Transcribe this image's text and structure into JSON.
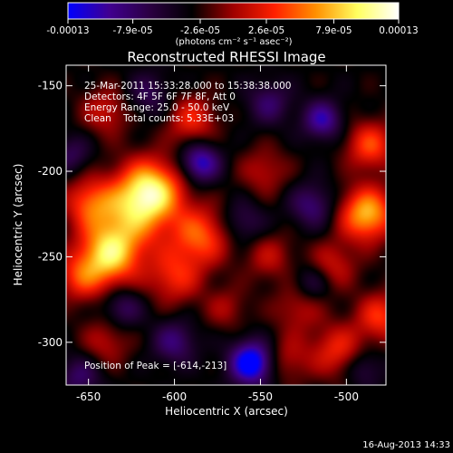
{
  "chart_data": {
    "type": "heatmap",
    "title": "Reconstructed RHESSI Image",
    "xlabel": "Heliocentric X (arcsec)",
    "ylabel": "Heliocentric Y (arcsec)",
    "xlim": [
      -663,
      -477
    ],
    "ylim": [
      -325,
      -138
    ],
    "x_ticks": [
      {
        "value": -650,
        "label": "-650"
      },
      {
        "value": -600,
        "label": "-600"
      },
      {
        "value": -550,
        "label": "-550"
      },
      {
        "value": -500,
        "label": "-500"
      }
    ],
    "y_ticks": [
      {
        "value": -150,
        "label": "-150"
      },
      {
        "value": -200,
        "label": "-200"
      },
      {
        "value": -250,
        "label": "-250"
      },
      {
        "value": -300,
        "label": "-300"
      }
    ],
    "colorbar": {
      "range": [
        -0.00013,
        0.00013
      ],
      "tick_labels": [
        "-0.00013",
        "-7.9e-05",
        "-2.6e-05",
        "2.6e-05",
        "7.9e-05",
        "0.00013"
      ],
      "tick_values": [
        -0.00013,
        -7.9e-05,
        -2.6e-05,
        2.6e-05,
        7.9e-05,
        0.00013
      ],
      "unit": "(photons cm⁻² s⁻¹ asec⁻²)",
      "stops": [
        "#0000ff",
        "#400090",
        "#2a0040",
        "#000000",
        "#a00000",
        "#ff2000",
        "#ff9000",
        "#ffff60",
        "#ffffff"
      ]
    },
    "annotations": [
      "25-Mar-2011 15:33:28.000 to 15:38:38.000",
      "Detectors: 4F 5F 6F 7F 8F, Att 0",
      "Energy Range: 25.0 - 50.0 keV",
      "Clean    Total counts: 5.33E+03"
    ],
    "peak_label": "Position of Peak = [-614,-213]",
    "peak": {
      "x": -614,
      "y": -213
    },
    "blobs": [
      {
        "x": -614,
        "y": -212,
        "value": 1.0,
        "sigma": 13
      },
      {
        "x": -630,
        "y": -230,
        "value": 0.55,
        "sigma": 16
      },
      {
        "x": -650,
        "y": -218,
        "value": 0.45,
        "sigma": 10
      },
      {
        "x": -638,
        "y": -250,
        "value": 0.75,
        "sigma": 12
      },
      {
        "x": -655,
        "y": -262,
        "value": 0.45,
        "sigma": 10
      },
      {
        "x": -585,
        "y": -238,
        "value": 0.6,
        "sigma": 12
      },
      {
        "x": -600,
        "y": -262,
        "value": 0.45,
        "sigma": 11
      },
      {
        "x": -640,
        "y": -165,
        "value": 0.35,
        "sigma": 10
      },
      {
        "x": -590,
        "y": -170,
        "value": 0.45,
        "sigma": 10
      },
      {
        "x": -548,
        "y": -200,
        "value": 0.3,
        "sigma": 10
      },
      {
        "x": -545,
        "y": -250,
        "value": 0.3,
        "sigma": 10
      },
      {
        "x": -508,
        "y": -255,
        "value": 0.35,
        "sigma": 10
      },
      {
        "x": -488,
        "y": -225,
        "value": 0.85,
        "sigma": 11
      },
      {
        "x": -486,
        "y": -185,
        "value": 0.55,
        "sigma": 10
      },
      {
        "x": -480,
        "y": -285,
        "value": 0.5,
        "sigma": 10
      },
      {
        "x": -505,
        "y": -305,
        "value": 0.45,
        "sigma": 11
      },
      {
        "x": -528,
        "y": -280,
        "value": 0.3,
        "sigma": 10
      },
      {
        "x": -535,
        "y": -310,
        "value": 0.3,
        "sigma": 10
      },
      {
        "x": -570,
        "y": -280,
        "value": 0.25,
        "sigma": 9
      },
      {
        "x": -640,
        "y": -300,
        "value": 0.3,
        "sigma": 10
      },
      {
        "x": -585,
        "y": -195,
        "value": -0.65,
        "sigma": 8
      },
      {
        "x": -555,
        "y": -312,
        "value": -0.9,
        "sigma": 9
      },
      {
        "x": -514,
        "y": -170,
        "value": -0.55,
        "sigma": 8
      },
      {
        "x": -600,
        "y": -300,
        "value": -0.4,
        "sigma": 9
      },
      {
        "x": -545,
        "y": -160,
        "value": -0.35,
        "sigma": 9
      },
      {
        "x": -615,
        "y": -155,
        "value": -0.3,
        "sigma": 9
      },
      {
        "x": -660,
        "y": -190,
        "value": -0.3,
        "sigma": 8
      },
      {
        "x": -520,
        "y": -220,
        "value": -0.4,
        "sigma": 9
      },
      {
        "x": -560,
        "y": -230,
        "value": -0.3,
        "sigma": 9
      },
      {
        "x": -655,
        "y": -320,
        "value": -0.35,
        "sigma": 9
      },
      {
        "x": -520,
        "y": -265,
        "value": -0.3,
        "sigma": 8
      },
      {
        "x": -630,
        "y": -280,
        "value": -0.35,
        "sigma": 8
      },
      {
        "x": -490,
        "y": -315,
        "value": -0.3,
        "sigma": 8
      }
    ],
    "baseline": -0.25
  },
  "footer": {
    "date": "16-Aug-2013 14:33"
  }
}
